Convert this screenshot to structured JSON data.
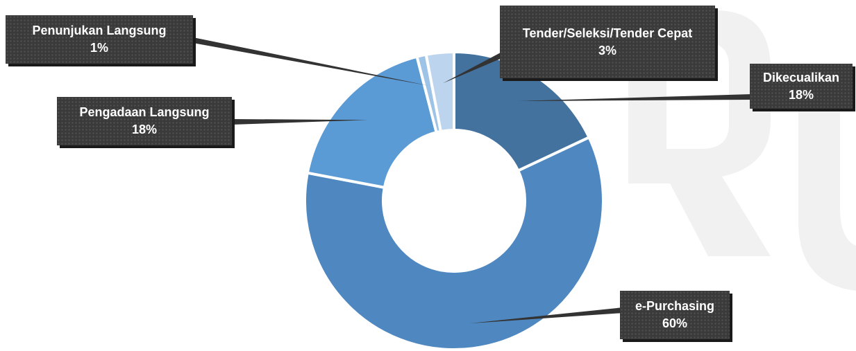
{
  "chart_data": {
    "type": "pie",
    "title": "",
    "categories": [
      "Dikecualikan",
      "e-Purchasing",
      "Pengadaan Langsung",
      "Penunjukan Langsung",
      "Tender/Seleksi/Tender Cepat"
    ],
    "values": [
      18,
      60,
      18,
      1,
      3
    ],
    "value_labels": [
      "18%",
      "60%",
      "18%",
      "1%",
      "3%"
    ],
    "colors": [
      "#44729f",
      "#4f88c0",
      "#5b9bd5",
      "#9dc3e6",
      "#bdd4ee"
    ],
    "legend": "none",
    "data_labels": "callouts outside, category name with percentage"
  }
}
